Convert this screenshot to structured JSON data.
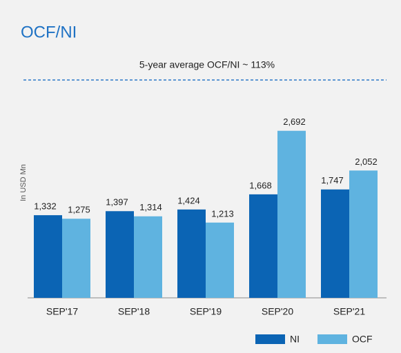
{
  "chart_data": {
    "type": "bar",
    "title": "OCF/NI",
    "subtitle": "5-year average OCF/NI ~ 113%",
    "y_label": "In USD Mn",
    "categories": [
      "SEP'17",
      "SEP'18",
      "SEP'19",
      "SEP'20",
      "SEP'21"
    ],
    "series": [
      {
        "name": "NI",
        "color": "#0b64b4",
        "values": [
          1332,
          1397,
          1424,
          1668,
          1747
        ],
        "value_labels": [
          "1,332",
          "1,397",
          "1,424",
          "1,668",
          "1,747"
        ]
      },
      {
        "name": "OCF",
        "color": "#5fb3e0",
        "values": [
          1275,
          1314,
          1213,
          2692,
          2052
        ],
        "value_labels": [
          "1,275",
          "1,314",
          "1,213",
          "2,692",
          "2,052"
        ]
      }
    ],
    "legend": "bottom-right"
  }
}
